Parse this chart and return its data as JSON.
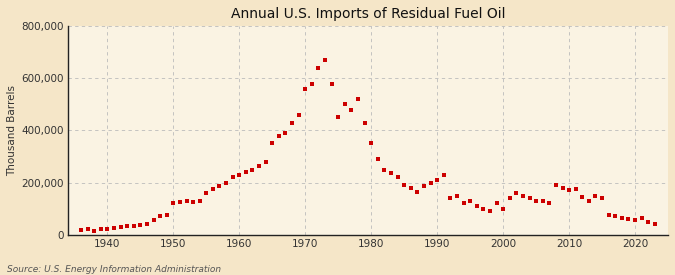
{
  "title": "Annual U.S. Imports of Residual Fuel Oil",
  "ylabel": "Thousand Barrels",
  "source": "Source: U.S. Energy Information Administration",
  "background_color": "#f5e6c8",
  "plot_bg_color": "#faf3e3",
  "marker_color": "#cc0000",
  "grid_color": "#bbbbbb",
  "spine_color": "#222222",
  "ylim": [
    0,
    800000
  ],
  "yticks": [
    0,
    200000,
    400000,
    600000,
    800000
  ],
  "xlim": [
    1934,
    2025
  ],
  "xticks": [
    1940,
    1950,
    1960,
    1970,
    1980,
    1990,
    2000,
    2010,
    2020
  ],
  "years": [
    1936,
    1937,
    1938,
    1939,
    1940,
    1941,
    1942,
    1943,
    1944,
    1945,
    1946,
    1947,
    1948,
    1949,
    1950,
    1951,
    1952,
    1953,
    1954,
    1955,
    1956,
    1957,
    1958,
    1959,
    1960,
    1961,
    1962,
    1963,
    1964,
    1965,
    1966,
    1967,
    1968,
    1969,
    1970,
    1971,
    1972,
    1973,
    1974,
    1975,
    1976,
    1977,
    1978,
    1979,
    1980,
    1981,
    1982,
    1983,
    1984,
    1985,
    1986,
    1987,
    1988,
    1989,
    1990,
    1991,
    1992,
    1993,
    1994,
    1995,
    1996,
    1997,
    1998,
    1999,
    2000,
    2001,
    2002,
    2003,
    2004,
    2005,
    2006,
    2007,
    2008,
    2009,
    2010,
    2011,
    2012,
    2013,
    2014,
    2015,
    2016,
    2017,
    2018,
    2019,
    2020,
    2021,
    2022,
    2023
  ],
  "values": [
    18000,
    22000,
    15000,
    20000,
    22000,
    25000,
    28000,
    32000,
    35000,
    38000,
    42000,
    55000,
    70000,
    75000,
    120000,
    125000,
    130000,
    125000,
    130000,
    160000,
    175000,
    185000,
    200000,
    220000,
    230000,
    240000,
    250000,
    265000,
    280000,
    350000,
    380000,
    390000,
    430000,
    460000,
    560000,
    580000,
    640000,
    670000,
    580000,
    450000,
    500000,
    480000,
    520000,
    430000,
    350000,
    290000,
    250000,
    235000,
    220000,
    190000,
    180000,
    165000,
    185000,
    200000,
    210000,
    230000,
    140000,
    150000,
    120000,
    130000,
    110000,
    100000,
    90000,
    120000,
    100000,
    140000,
    160000,
    150000,
    140000,
    130000,
    130000,
    120000,
    190000,
    180000,
    170000,
    175000,
    145000,
    130000,
    150000,
    140000,
    75000,
    70000,
    65000,
    60000,
    55000,
    65000,
    50000,
    40000
  ]
}
